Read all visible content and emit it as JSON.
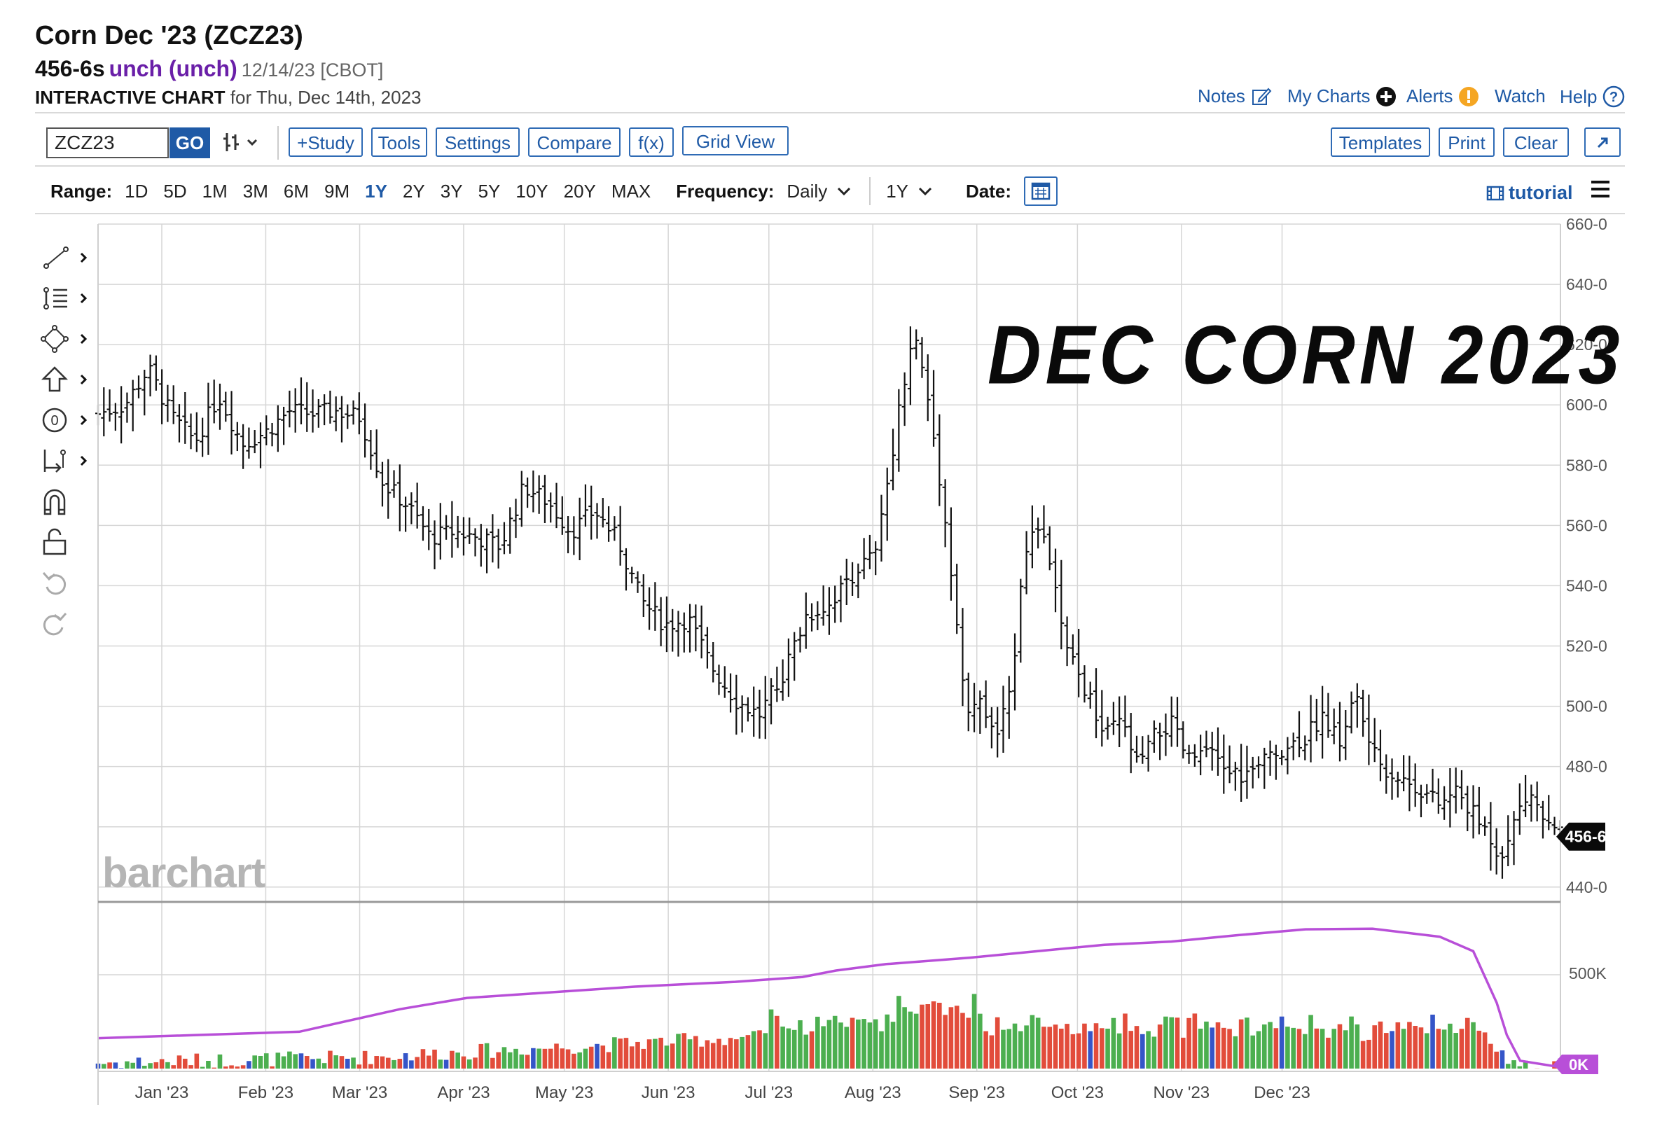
{
  "header": {
    "title": "Corn Dec '23 (ZCZ23)",
    "price": "456-6s",
    "change": "unch (unch)",
    "date_exchange": "12/14/23 [CBOT]",
    "chart_label": "INTERACTIVE CHART",
    "chart_for": "for Thu, Dec 14th, 2023"
  },
  "top_links": {
    "notes": "Notes",
    "my_charts": "My Charts",
    "alerts": "Alerts",
    "watch": "Watch",
    "help": "Help"
  },
  "toolbar": {
    "symbol_value": "ZCZ23",
    "go": "GO",
    "study": "+Study",
    "tools": "Tools",
    "settings": "Settings",
    "compare": "Compare",
    "fx": "f(x)",
    "grid_view": "Grid View",
    "templates": "Templates",
    "print": "Print",
    "clear": "Clear"
  },
  "range_row": {
    "range_label": "Range:",
    "ranges": [
      "1D",
      "5D",
      "1M",
      "3M",
      "6M",
      "9M",
      "1Y",
      "2Y",
      "3Y",
      "5Y",
      "10Y",
      "20Y",
      "MAX"
    ],
    "active_range": "1Y",
    "frequency_label": "Frequency:",
    "frequency_value": "Daily",
    "period_value": "1Y",
    "date_label": "Date:",
    "tutorial": "tutorial"
  },
  "icons": {
    "left_tools": [
      "line-draw-icon",
      "fib-icon",
      "shapes-icon",
      "arrow-up-icon",
      "counter-icon",
      "measure-icon",
      "magnet-icon",
      "unlock-icon",
      "undo-icon",
      "redo-icon"
    ]
  },
  "annotation_text": "DEC CORN 2023",
  "brand": "barchart",
  "colors": {
    "link": "#1f5aa6",
    "change": "#6a1fa8",
    "vol_up": "#4caf50",
    "vol_down": "#e24c3b",
    "vol_unch": "#3555c8",
    "oi_line": "#b84fd8",
    "price_bars": "#111111"
  },
  "chart_data": {
    "type": "ohlc-bar",
    "title": "",
    "x_labels": [
      "Jan '23",
      "Feb '23",
      "Mar '23",
      "Apr '23",
      "May '23",
      "Jun '23",
      "Jul '23",
      "Aug '23",
      "Sep '23",
      "Oct '23",
      "Nov '23",
      "Dec '23"
    ],
    "price_axis": {
      "ticks": [
        "660-0",
        "640-0",
        "620-0",
        "600-0",
        "580-0",
        "560-0",
        "540-0",
        "520-0",
        "500-0",
        "480-0",
        "440-0"
      ],
      "ylim": [
        436,
        660
      ]
    },
    "last_price_label": "456-6",
    "price_series_close": [
      [
        0,
        597
      ],
      [
        8,
        600
      ],
      [
        15,
        612
      ],
      [
        22,
        596
      ],
      [
        29,
        588
      ],
      [
        36,
        603
      ],
      [
        43,
        587
      ],
      [
        50,
        591
      ],
      [
        57,
        598
      ],
      [
        64,
        597
      ],
      [
        71,
        598
      ],
      [
        78,
        596
      ],
      [
        85,
        574
      ],
      [
        92,
        567
      ],
      [
        99,
        556
      ],
      [
        106,
        558
      ],
      [
        113,
        556
      ],
      [
        120,
        553
      ],
      [
        127,
        573
      ],
      [
        134,
        568
      ],
      [
        141,
        558
      ],
      [
        148,
        565
      ],
      [
        155,
        555
      ],
      [
        162,
        535
      ],
      [
        169,
        527
      ],
      [
        176,
        529
      ],
      [
        183,
        513
      ],
      [
        190,
        502
      ],
      [
        197,
        497
      ],
      [
        204,
        510
      ],
      [
        211,
        530
      ],
      [
        218,
        534
      ],
      [
        225,
        544
      ],
      [
        232,
        551
      ],
      [
        239,
        600
      ],
      [
        243,
        625
      ],
      [
        247,
        605
      ],
      [
        251,
        575
      ],
      [
        255,
        539
      ],
      [
        259,
        495
      ],
      [
        263,
        503
      ],
      [
        267,
        489
      ],
      [
        272,
        503
      ],
      [
        276,
        553
      ],
      [
        280,
        559
      ],
      [
        284,
        548
      ],
      [
        288,
        520
      ],
      [
        292,
        511
      ],
      [
        296,
        501
      ],
      [
        300,
        490
      ],
      [
        305,
        495
      ],
      [
        310,
        480
      ],
      [
        315,
        490
      ],
      [
        320,
        494
      ],
      [
        325,
        482
      ],
      [
        330,
        485
      ],
      [
        335,
        480
      ],
      [
        340,
        477
      ],
      [
        345,
        478
      ],
      [
        350,
        485
      ],
      [
        355,
        487
      ],
      [
        360,
        490
      ],
      [
        365,
        497
      ],
      [
        370,
        488
      ],
      [
        375,
        504
      ],
      [
        380,
        484
      ],
      [
        385,
        478
      ],
      [
        390,
        475
      ],
      [
        395,
        472
      ],
      [
        400,
        467
      ],
      [
        405,
        472
      ],
      [
        410,
        464
      ],
      [
        415,
        457
      ],
      [
        419,
        449
      ],
      [
        423,
        465
      ],
      [
        427,
        471
      ],
      [
        432,
        460
      ],
      [
        436,
        457
      ]
    ],
    "price_ohlc_generated_from_close": true,
    "volume_axis": {
      "ticks": [
        "500K",
        "0K"
      ]
    },
    "volume_generated": true,
    "open_interest_line": [
      [
        0,
        90
      ],
      [
        30,
        100
      ],
      [
        60,
        110
      ],
      [
        90,
        180
      ],
      [
        110,
        215
      ],
      [
        160,
        250
      ],
      [
        190,
        265
      ],
      [
        210,
        280
      ],
      [
        220,
        300
      ],
      [
        235,
        320
      ],
      [
        260,
        340
      ],
      [
        280,
        360
      ],
      [
        300,
        380
      ],
      [
        320,
        390
      ],
      [
        340,
        410
      ],
      [
        360,
        428
      ],
      [
        380,
        430
      ],
      [
        400,
        405
      ],
      [
        410,
        360
      ],
      [
        417,
        200
      ],
      [
        420,
        100
      ],
      [
        424,
        20
      ],
      [
        436,
        0
      ]
    ],
    "oi_last_label": "0K"
  }
}
